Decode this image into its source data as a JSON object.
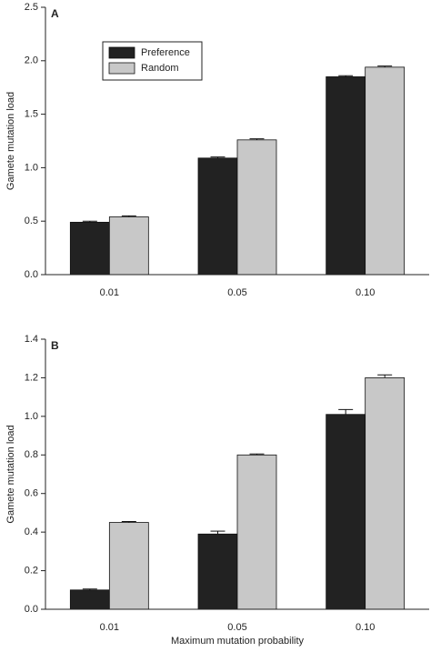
{
  "chart_data": [
    {
      "type": "bar",
      "annotation": "A",
      "y_label": "Gamete mutation load",
      "categories": [
        "0.01",
        "0.05",
        "0.10"
      ],
      "series": [
        {
          "name": "Preference",
          "color": "#222222",
          "values": [
            0.49,
            1.09,
            1.85
          ],
          "errors": [
            0.01,
            0.01,
            0.01
          ]
        },
        {
          "name": "Random",
          "color": "#c8c8c8",
          "values": [
            0.54,
            1.26,
            1.94
          ],
          "errors": [
            0.01,
            0.01,
            0.01
          ]
        }
      ],
      "ylim": [
        0,
        2.5
      ],
      "yticks": [
        {
          "value": 0,
          "label": "0.0"
        },
        0.5,
        {
          "value": 1,
          "label": "1.0"
        },
        1.5,
        {
          "value": 2,
          "label": "2.0"
        },
        2.5
      ],
      "legend": "upper left"
    },
    {
      "type": "bar",
      "annotation": "B",
      "y_label": "Gamete mutation load",
      "x_label": "Maximum mutation probability",
      "categories": [
        "0.01",
        "0.05",
        "0.10"
      ],
      "series": [
        {
          "color": "#222222",
          "values": [
            0.1,
            0.39,
            1.01
          ],
          "errors": [
            0.005,
            0.015,
            0.025
          ]
        },
        {
          "color": "#c8c8c8",
          "values": [
            0.45,
            0.8,
            1.2
          ],
          "errors": [
            0.005,
            0.005,
            0.015
          ]
        }
      ],
      "ylim": [
        0,
        1.4
      ],
      "yticks": [
        {
          "value": 0,
          "label": "0.0"
        },
        0.2,
        0.4,
        0.6,
        0.8,
        {
          "value": 1,
          "label": "1.0"
        },
        1.2,
        1.4
      ]
    }
  ]
}
